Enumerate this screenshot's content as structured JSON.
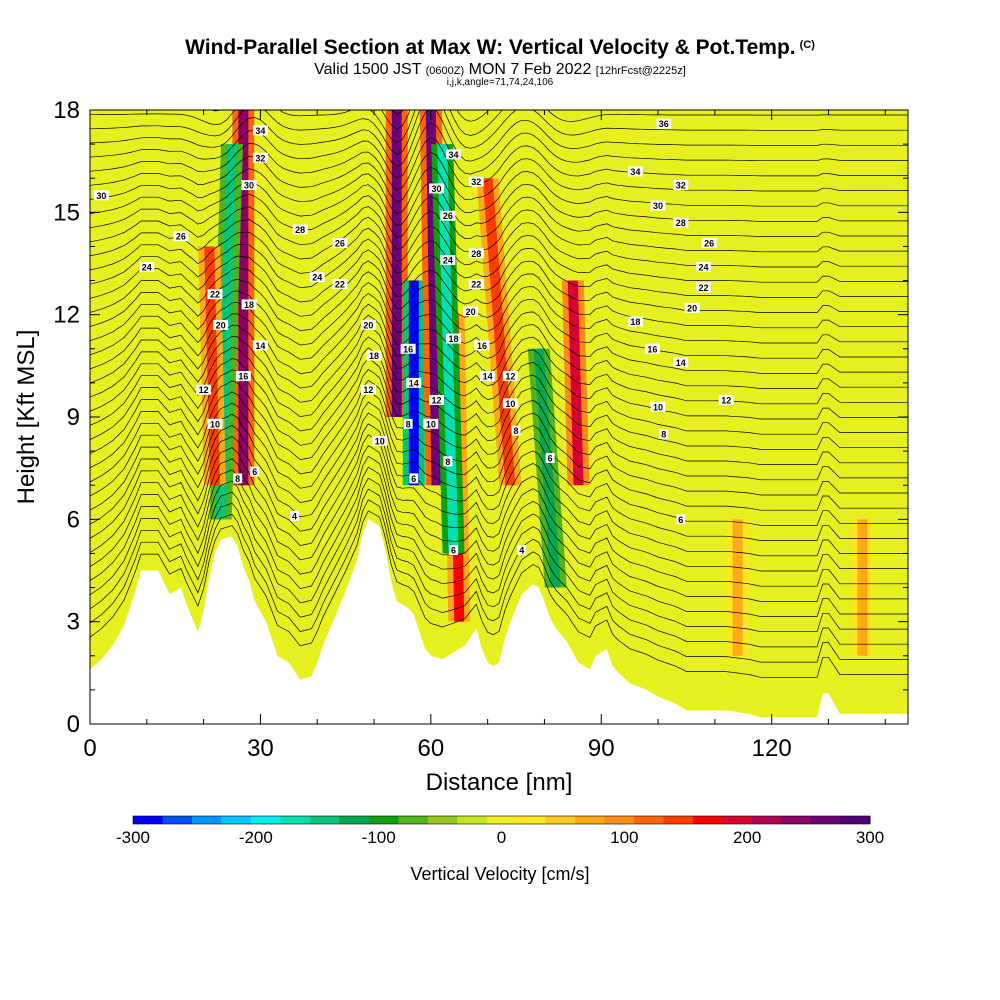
{
  "title": {
    "main": "Wind-Parallel Section at Max W: Vertical Velocity & Pot.Temp.",
    "corner_mark": "(C)",
    "valid_prefix": "Valid 1500 JST",
    "valid_utc": "(0600Z)",
    "valid_date": "MON 7 Feb 2022",
    "forecast_info": "[12hrFcst@2225z]",
    "grid_info": "i,j,k,angle=71,74,24,106"
  },
  "chart_data": {
    "type": "heatmap",
    "xlabel": "Distance [nm]",
    "ylabel": "Height [Kft MSL]",
    "xlim": [
      0,
      144
    ],
    "ylim": [
      0,
      18
    ],
    "x_ticks": [
      0,
      30,
      60,
      90,
      120
    ],
    "y_ticks": [
      0,
      3,
      6,
      9,
      12,
      15,
      18
    ],
    "colorbar": {
      "label": "Vertical Velocity [cm/s]",
      "range": [
        -300,
        300
      ],
      "step": 25,
      "tick_values": [
        -300,
        -200,
        -100,
        0,
        100,
        200,
        300
      ],
      "tick_labels": [
        "-300",
        "-200",
        "-100",
        "0",
        "100",
        "200",
        "300"
      ],
      "colors": [
        "#0000ff",
        "#0050ff",
        "#0096ff",
        "#00c8ff",
        "#00f0f0",
        "#00e0b0",
        "#00c878",
        "#00a850",
        "#10a010",
        "#50b41e",
        "#96c81e",
        "#c8e61e",
        "#f0f01e",
        "#ffe61e",
        "#ffc81e",
        "#ffaa14",
        "#ff8c14",
        "#ff640a",
        "#ff3c00",
        "#ff0000",
        "#dc0032",
        "#b40050",
        "#8c0064",
        "#6e0078",
        "#500078"
      ]
    },
    "vertical_velocity_cores": [
      {
        "x_top": 27,
        "x_bottom": 27,
        "y_top": 18,
        "y_bottom": 7,
        "value": 250
      },
      {
        "x_top": 25,
        "x_bottom": 23,
        "y_top": 17,
        "y_bottom": 6,
        "value": -150
      },
      {
        "x_top": 21,
        "x_bottom": 22,
        "y_top": 14,
        "y_bottom": 7,
        "value": 150
      },
      {
        "x_top": 54,
        "x_bottom": 54,
        "y_top": 18,
        "y_bottom": 9,
        "value": 275
      },
      {
        "x_top": 57,
        "x_bottom": 57,
        "y_top": 13,
        "y_bottom": 7,
        "value": -300
      },
      {
        "x_top": 60,
        "x_bottom": 61,
        "y_top": 18,
        "y_bottom": 7,
        "value": 275
      },
      {
        "x_top": 64,
        "x_bottom": 65,
        "y_top": 12,
        "y_bottom": 3,
        "value": 175
      },
      {
        "x_top": 62,
        "x_bottom": 64,
        "y_top": 17,
        "y_bottom": 5,
        "value": -175
      },
      {
        "x_top": 70,
        "x_bottom": 74,
        "y_top": 16,
        "y_bottom": 7,
        "value": 150
      },
      {
        "x_top": 79,
        "x_bottom": 82,
        "y_top": 11,
        "y_bottom": 4,
        "value": -125
      },
      {
        "x_top": 85,
        "x_bottom": 86,
        "y_top": 13,
        "y_bottom": 7,
        "value": 200
      },
      {
        "x_top": 114,
        "x_bottom": 114,
        "y_top": 6,
        "y_bottom": 2,
        "value": 75
      },
      {
        "x_top": 136,
        "x_bottom": 136,
        "y_top": 6,
        "y_bottom": 2,
        "value": 75
      }
    ],
    "terrain": [
      [
        0,
        1.6
      ],
      [
        2,
        1.9
      ],
      [
        4,
        2.3
      ],
      [
        6,
        2.9
      ],
      [
        8,
        3.9
      ],
      [
        9,
        4.5
      ],
      [
        12,
        4.5
      ],
      [
        14,
        3.8
      ],
      [
        16,
        4
      ],
      [
        17,
        3.5
      ],
      [
        18,
        3.1
      ],
      [
        19,
        2.7
      ],
      [
        20,
        3.3
      ],
      [
        21,
        4.3
      ],
      [
        22,
        5
      ],
      [
        23,
        5.4
      ],
      [
        25,
        5.5
      ],
      [
        26,
        5.2
      ],
      [
        27,
        4.6
      ],
      [
        28,
        4.2
      ],
      [
        29,
        3.6
      ],
      [
        31,
        3
      ],
      [
        32,
        2.5
      ],
      [
        33,
        2
      ],
      [
        35,
        1.8
      ],
      [
        37,
        1.3
      ],
      [
        39,
        1.4
      ],
      [
        40,
        1.8
      ],
      [
        41,
        2.3
      ],
      [
        43,
        3.1
      ],
      [
        45,
        3.9
      ],
      [
        47,
        4.8
      ],
      [
        48,
        5.6
      ],
      [
        49,
        6
      ],
      [
        51,
        5.8
      ],
      [
        52,
        5.1
      ],
      [
        53,
        4.2
      ],
      [
        54,
        3.6
      ],
      [
        56,
        3.4
      ],
      [
        57,
        3.2
      ],
      [
        58,
        2.7
      ],
      [
        59,
        2.2
      ],
      [
        60,
        2
      ],
      [
        62,
        1.9
      ],
      [
        64,
        2.1
      ],
      [
        66,
        2.3
      ],
      [
        68,
        2.8
      ],
      [
        69,
        2.2
      ],
      [
        70,
        1.8
      ],
      [
        71,
        1.7
      ],
      [
        72,
        1.8
      ],
      [
        73,
        2.5
      ],
      [
        74,
        3
      ],
      [
        76,
        3.8
      ],
      [
        78,
        4.1
      ],
      [
        79,
        4
      ],
      [
        80,
        3.6
      ],
      [
        81,
        3.1
      ],
      [
        82,
        2.8
      ],
      [
        84,
        2.4
      ],
      [
        85,
        2.1
      ],
      [
        86,
        1.8
      ],
      [
        88,
        1.6
      ],
      [
        89,
        2
      ],
      [
        91,
        2.2
      ],
      [
        92,
        1.7
      ],
      [
        93,
        1.5
      ],
      [
        95,
        1.2
      ],
      [
        98,
        1
      ],
      [
        100,
        0.8
      ],
      [
        103,
        0.6
      ],
      [
        105,
        0.4
      ],
      [
        108,
        0.4
      ],
      [
        112,
        0.4
      ],
      [
        116,
        0.3
      ],
      [
        118,
        0.2
      ],
      [
        122,
        0.2
      ],
      [
        128,
        0.2
      ],
      [
        129,
        0.9
      ],
      [
        130,
        0.9
      ],
      [
        131,
        0.6
      ],
      [
        132,
        0.3
      ],
      [
        136,
        0.3
      ],
      [
        140,
        0.3
      ],
      [
        144,
        0.3
      ]
    ],
    "isentrope_labels": [
      {
        "x": 2,
        "y": 15.5,
        "text": "30"
      },
      {
        "x": 10,
        "y": 13.4,
        "text": "24"
      },
      {
        "x": 16,
        "y": 14.3,
        "text": "26"
      },
      {
        "x": 22,
        "y": 12.6,
        "text": "22"
      },
      {
        "x": 23,
        "y": 11.7,
        "text": "20"
      },
      {
        "x": 20,
        "y": 9.8,
        "text": "12"
      },
      {
        "x": 22,
        "y": 8.8,
        "text": "10"
      },
      {
        "x": 26,
        "y": 7.2,
        "text": "8"
      },
      {
        "x": 29,
        "y": 7.4,
        "text": "6"
      },
      {
        "x": 30,
        "y": 17.4,
        "text": "34"
      },
      {
        "x": 30,
        "y": 16.6,
        "text": "32"
      },
      {
        "x": 28,
        "y": 15.8,
        "text": "30"
      },
      {
        "x": 28,
        "y": 12.3,
        "text": "18"
      },
      {
        "x": 30,
        "y": 11.1,
        "text": "14"
      },
      {
        "x": 27,
        "y": 10.2,
        "text": "16"
      },
      {
        "x": 37,
        "y": 14.5,
        "text": "28"
      },
      {
        "x": 40,
        "y": 13.1,
        "text": "24"
      },
      {
        "x": 44,
        "y": 14.1,
        "text": "26"
      },
      {
        "x": 44,
        "y": 12.9,
        "text": "22"
      },
      {
        "x": 36,
        "y": 6.1,
        "text": "4"
      },
      {
        "x": 49,
        "y": 11.7,
        "text": "20"
      },
      {
        "x": 50,
        "y": 10.8,
        "text": "18"
      },
      {
        "x": 49,
        "y": 9.8,
        "text": "12"
      },
      {
        "x": 51,
        "y": 8.3,
        "text": "10"
      },
      {
        "x": 56,
        "y": 11,
        "text": "16"
      },
      {
        "x": 57,
        "y": 10,
        "text": "14"
      },
      {
        "x": 56,
        "y": 8.8,
        "text": "8"
      },
      {
        "x": 57,
        "y": 7.2,
        "text": "6"
      },
      {
        "x": 61,
        "y": 15.7,
        "text": "30"
      },
      {
        "x": 64,
        "y": 16.7,
        "text": "34"
      },
      {
        "x": 68,
        "y": 15.9,
        "text": "32"
      },
      {
        "x": 63,
        "y": 14.9,
        "text": "26"
      },
      {
        "x": 63,
        "y": 13.6,
        "text": "24"
      },
      {
        "x": 68,
        "y": 13.8,
        "text": "28"
      },
      {
        "x": 68,
        "y": 12.9,
        "text": "22"
      },
      {
        "x": 67,
        "y": 12.1,
        "text": "20"
      },
      {
        "x": 64,
        "y": 11.3,
        "text": "18"
      },
      {
        "x": 69,
        "y": 11.1,
        "text": "16"
      },
      {
        "x": 61,
        "y": 9.5,
        "text": "12"
      },
      {
        "x": 60,
        "y": 8.8,
        "text": "10"
      },
      {
        "x": 63,
        "y": 7.7,
        "text": "8"
      },
      {
        "x": 70,
        "y": 10.2,
        "text": "14"
      },
      {
        "x": 74,
        "y": 10.2,
        "text": "12"
      },
      {
        "x": 74,
        "y": 9.4,
        "text": "10"
      },
      {
        "x": 75,
        "y": 8.6,
        "text": "8"
      },
      {
        "x": 64,
        "y": 5.1,
        "text": "6"
      },
      {
        "x": 76,
        "y": 5.1,
        "text": "4"
      },
      {
        "x": 81,
        "y": 7.8,
        "text": "6"
      },
      {
        "x": 101,
        "y": 17.6,
        "text": "36"
      },
      {
        "x": 96,
        "y": 16.2,
        "text": "34"
      },
      {
        "x": 104,
        "y": 15.8,
        "text": "32"
      },
      {
        "x": 100,
        "y": 15.2,
        "text": "30"
      },
      {
        "x": 104,
        "y": 14.7,
        "text": "28"
      },
      {
        "x": 109,
        "y": 14.1,
        "text": "26"
      },
      {
        "x": 108,
        "y": 13.4,
        "text": "24"
      },
      {
        "x": 108,
        "y": 12.8,
        "text": "22"
      },
      {
        "x": 106,
        "y": 12.2,
        "text": "20"
      },
      {
        "x": 96,
        "y": 11.8,
        "text": "18"
      },
      {
        "x": 99,
        "y": 11,
        "text": "16"
      },
      {
        "x": 104,
        "y": 10.6,
        "text": "14"
      },
      {
        "x": 112,
        "y": 9.5,
        "text": "12"
      },
      {
        "x": 100,
        "y": 9.3,
        "text": "10"
      },
      {
        "x": 101,
        "y": 8.5,
        "text": "8"
      },
      {
        "x": 104,
        "y": 6,
        "text": "6"
      }
    ]
  }
}
